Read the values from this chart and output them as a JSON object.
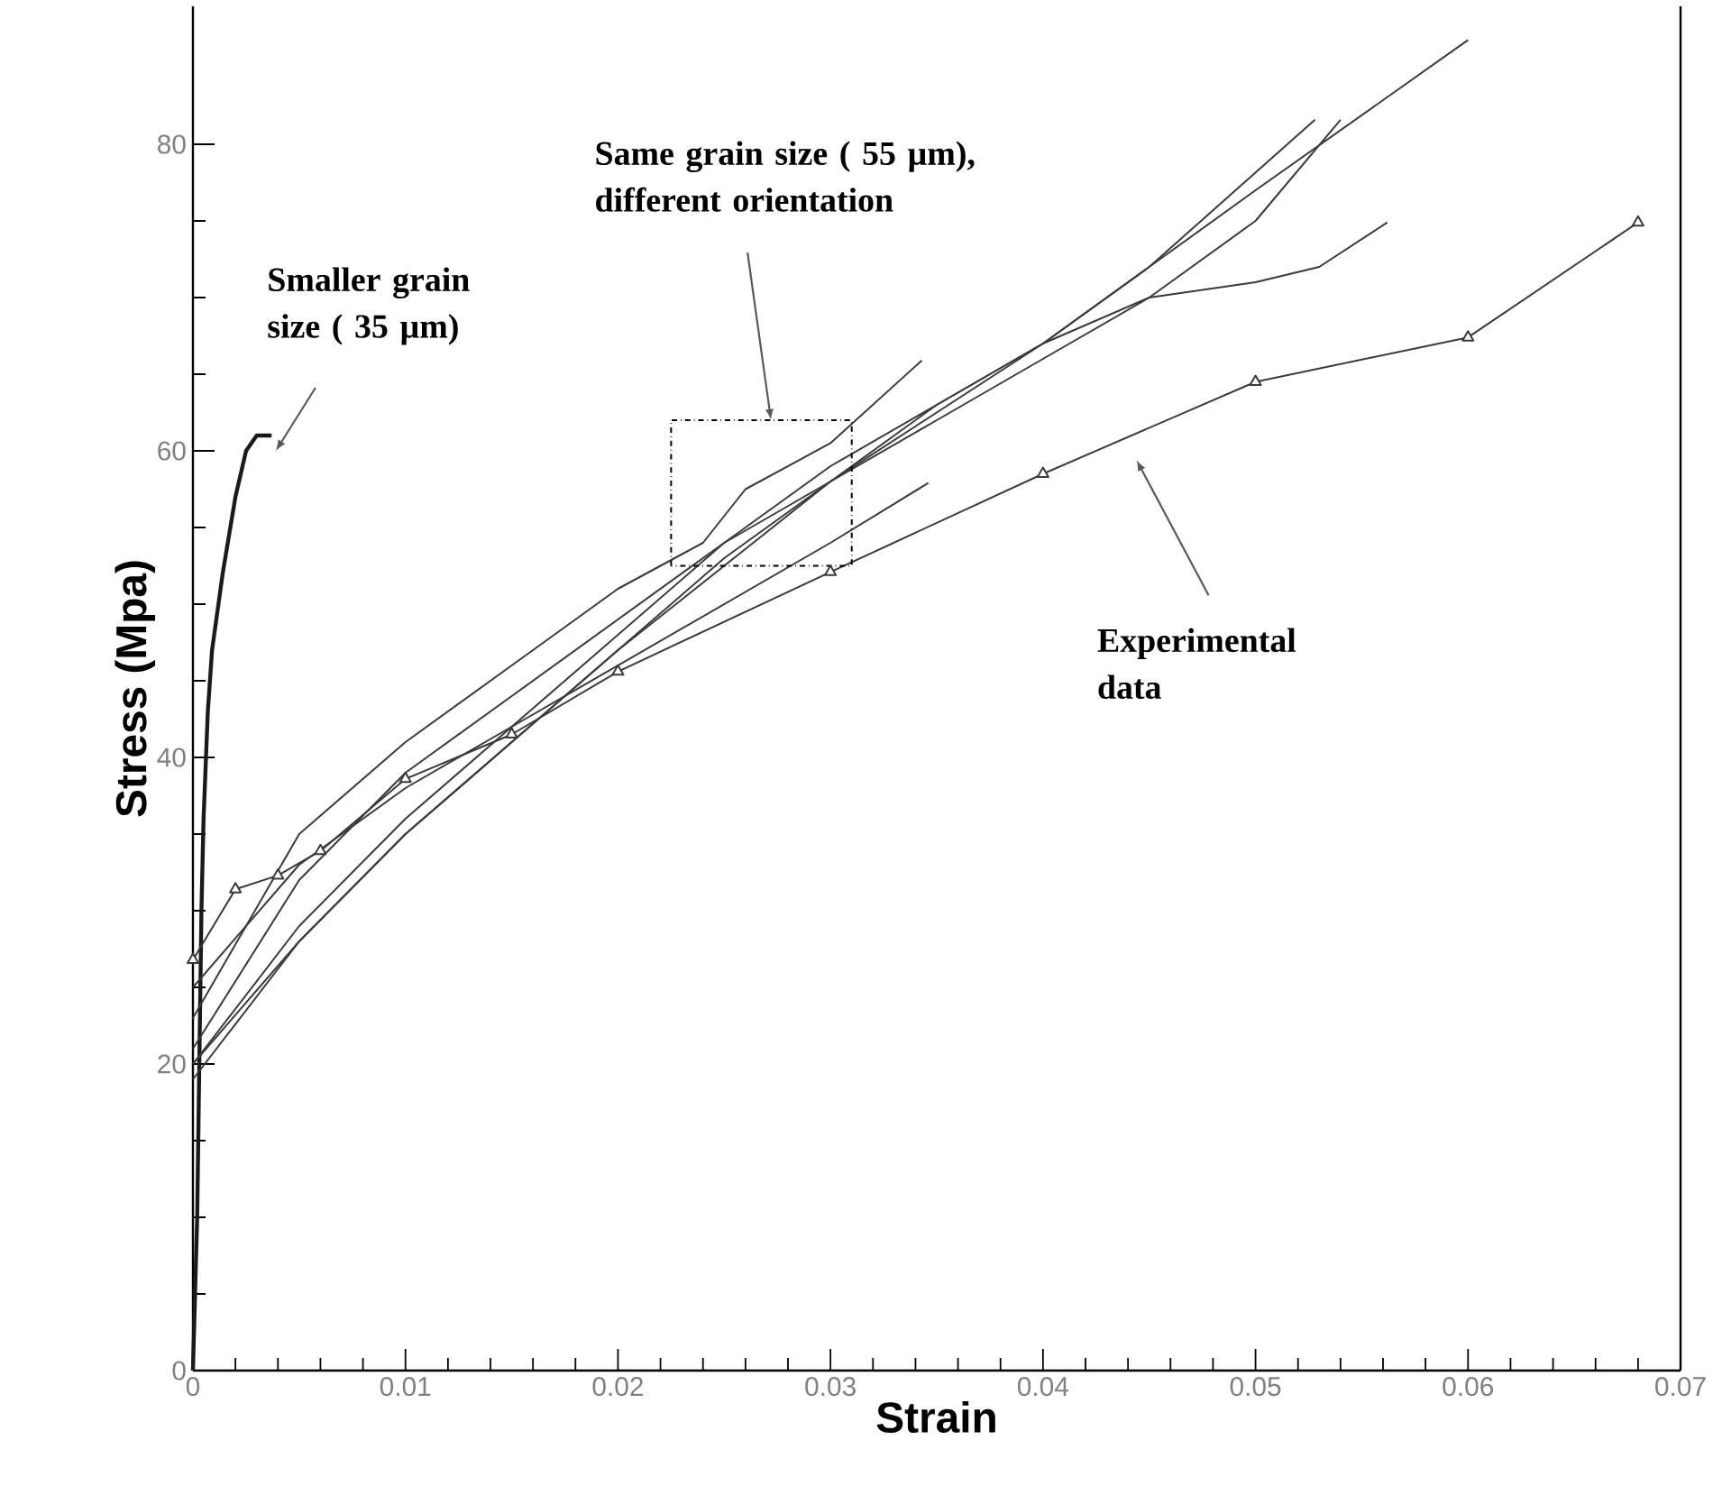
{
  "chart_data": {
    "type": "line",
    "xlabel": "Strain",
    "ylabel": "Stress (Mpa)",
    "xlim": [
      0,
      0.07
    ],
    "ylim": [
      0,
      89
    ],
    "xticks": [
      0,
      0.01,
      0.02,
      0.03,
      0.04,
      0.05,
      0.06,
      0.07
    ],
    "yticks": [
      0,
      20,
      40,
      60,
      80
    ],
    "marker": "none",
    "line_style": "solid",
    "series": [
      {
        "color": "#1a1a1a",
        "x": [
          0,
          0.0002,
          0.0003,
          0.0004,
          0.0005,
          0.0007,
          0.0009,
          0.0014,
          0.002,
          0.0025,
          0.003,
          0.0037
        ],
        "values": [
          0,
          10,
          20,
          30,
          36,
          43,
          47,
          52,
          57,
          60,
          61,
          61
        ]
      },
      {
        "color": "#3a3a3a",
        "x": [
          0,
          0.005,
          0.01,
          0.015,
          0.02,
          0.024,
          0.026,
          0.03,
          0.0343
        ],
        "values": [
          23,
          35,
          41,
          46,
          51,
          54,
          57.5,
          60.5,
          65.9
        ]
      },
      {
        "color": "#3a3a3a",
        "x": [
          0,
          0.005,
          0.01,
          0.015,
          0.02,
          0.025,
          0.03,
          0.035,
          0.04,
          0.045,
          0.05,
          0.053,
          0.0562
        ],
        "values": [
          21,
          32,
          39,
          44,
          49,
          54,
          58,
          63,
          67,
          70,
          71,
          72,
          74.9
        ]
      },
      {
        "color": "#3a3a3a",
        "x": [
          0,
          0.005,
          0.01,
          0.015,
          0.02,
          0.03,
          0.04,
          0.05,
          0.06
        ],
        "values": [
          20,
          28,
          35,
          41,
          47,
          58,
          67,
          77,
          86.8
        ]
      },
      {
        "color": "#3a3a3a",
        "x": [
          0,
          0.005,
          0.01,
          0.015,
          0.02,
          0.025,
          0.03,
          0.035,
          0.04,
          0.045,
          0.0528
        ],
        "values": [
          20,
          29,
          36,
          42,
          48,
          54,
          59,
          63,
          67,
          72,
          81.6
        ]
      },
      {
        "color": "#3a3a3a",
        "x": [
          0,
          0.005,
          0.01,
          0.015,
          0.02,
          0.025,
          0.03,
          0.035,
          0.04,
          0.045,
          0.05,
          0.054
        ],
        "values": [
          19,
          28,
          35,
          41,
          47,
          53,
          58,
          62,
          66,
          70,
          75,
          81.6
        ]
      },
      {
        "color": "#3a3a3a",
        "x": [
          0,
          0.005,
          0.01,
          0.015,
          0.02,
          0.025,
          0.03,
          0.0346
        ],
        "values": [
          25,
          33,
          38,
          42,
          46,
          50,
          54,
          57.9
        ]
      },
      {
        "color": "#3a3a3a",
        "marker": "triangle",
        "x": [
          0,
          0.002,
          0.004,
          0.006,
          0.01,
          0.015,
          0.02,
          0.03,
          0.04,
          0.05,
          0.06,
          0.068
        ],
        "values": [
          26.8,
          31.4,
          32.3,
          33.9,
          38.6,
          41.5,
          45.6,
          52.1,
          58.5,
          64.5,
          67.4,
          74.9
        ]
      }
    ],
    "annotations": [
      "Smaller grain size ( 35 µm)",
      "Same grain size ( 55 µm), different orientation",
      "Experimental data"
    ]
  }
}
